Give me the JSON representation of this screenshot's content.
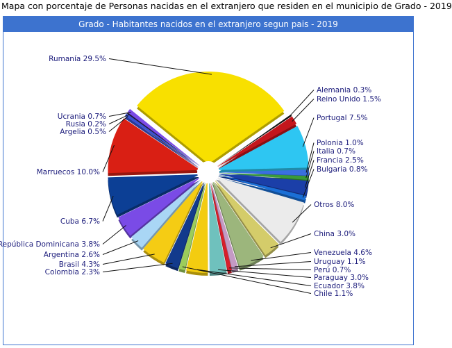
{
  "page": {
    "title": "Mapa con porcentaje de Personas nacidas en el extranjero que residen en el municipio de Grado - 2019"
  },
  "panel": {
    "header": "Grado - Habitantes nacidos en el extranjero segun pais - 2019"
  },
  "chart_data": {
    "type": "pie",
    "title": "Grado - Habitantes nacidos en el extranjero segun pais - 2019",
    "slices": [
      {
        "label": "Alemania 0.3%",
        "value": 0.3,
        "color": "#111111"
      },
      {
        "label": "Reino Unido 1.5%",
        "value": 1.5,
        "color": "#c4161c"
      },
      {
        "label": "Portugal 7.5%",
        "value": 7.5,
        "color": "#2ec6f2"
      },
      {
        "label": "Polonia 1.0%",
        "value": 1.0,
        "color": "#3a6fe0"
      },
      {
        "label": "Italia 0.7%",
        "value": 0.7,
        "color": "#3a9a3a"
      },
      {
        "label": "Francia 2.5%",
        "value": 2.5,
        "color": "#1b3fa8"
      },
      {
        "label": "Bulgaria 0.8%",
        "value": 0.8,
        "color": "#1a6fd6"
      },
      {
        "label": "Otros 8.0%",
        "value": 8.0,
        "color": "#ebebeb"
      },
      {
        "label": "China 3.0%",
        "value": 3.0,
        "color": "#d4cc6a"
      },
      {
        "label": "Venezuela 4.6%",
        "value": 4.6,
        "color": "#9cb67c"
      },
      {
        "label": "Uruguay 1.1%",
        "value": 1.1,
        "color": "#c49ac4"
      },
      {
        "label": "Perú 0.7%",
        "value": 0.7,
        "color": "#d81e2b"
      },
      {
        "label": "Paraguay 3.0%",
        "value": 3.0,
        "color": "#6fc1bd"
      },
      {
        "label": "Ecuador 3.8%",
        "value": 3.8,
        "color": "#f3cc10"
      },
      {
        "label": "Chile 1.1%",
        "value": 1.1,
        "color": "#9ccc5a"
      },
      {
        "label": "Colombia 2.3%",
        "value": 2.3,
        "color": "#123a8c"
      },
      {
        "label": "Brasil 4.3%",
        "value": 4.3,
        "color": "#f5cc14"
      },
      {
        "label": "Argentina 2.6%",
        "value": 2.6,
        "color": "#a9d6f5"
      },
      {
        "label": "República Dominicana 3.8%",
        "value": 3.8,
        "color": "#7a4be6"
      },
      {
        "label": "Cuba 6.7%",
        "value": 6.7,
        "color": "#0c3f95"
      },
      {
        "label": "Marruecos 10.0%",
        "value": 10.0,
        "color": "#d91f14"
      },
      {
        "label": "Argelia 0.5%",
        "value": 0.5,
        "color": "#3b53d6"
      },
      {
        "label": "Rusia 0.2%",
        "value": 0.2,
        "color": "#1a1a2e"
      },
      {
        "label": "Ucrania 0.7%",
        "value": 0.7,
        "color": "#7a4be6"
      },
      {
        "label": "Rumanía 29.5%",
        "value": 29.5,
        "color": "#f8e000"
      }
    ]
  }
}
